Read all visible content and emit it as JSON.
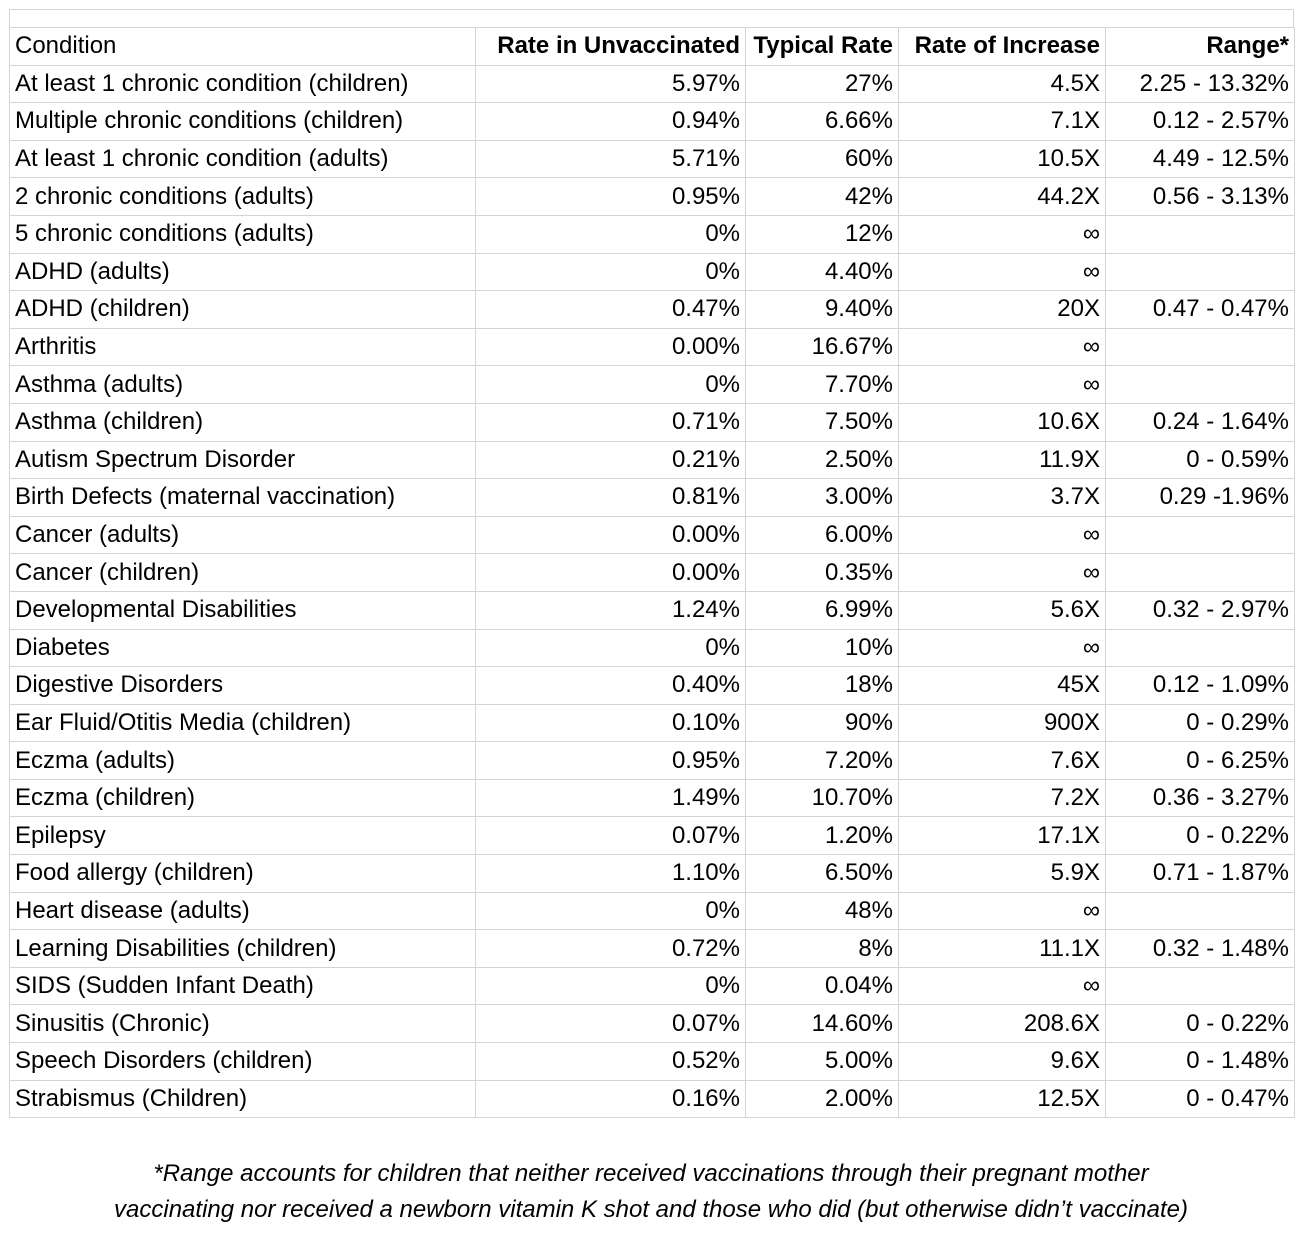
{
  "table": {
    "header": [
      "Condition",
      "Rate in Unvaccinated",
      "Typical Rate",
      "Rate of Increase",
      "Range*"
    ],
    "rows": [
      [
        "At least 1 chronic condition (children)",
        "5.97%",
        "27%",
        "4.5X",
        "2.25 - 13.32%"
      ],
      [
        "Multiple chronic conditions  (children)",
        "0.94%",
        "6.66%",
        "7.1X",
        "0.12 - 2.57%"
      ],
      [
        "At least 1 chronic condition (adults)",
        "5.71%",
        "60%",
        "10.5X",
        "4.49 - 12.5%"
      ],
      [
        "2 chronic conditions (adults)",
        "0.95%",
        "42%",
        "44.2X",
        "0.56 - 3.13%"
      ],
      [
        "5 chronic conditions (adults)",
        "0%",
        "12%",
        "∞",
        null
      ],
      [
        "ADHD (adults)",
        "0%",
        "4.40%",
        "∞",
        null
      ],
      [
        "ADHD (children)",
        "0.47%",
        "9.40%",
        "20X",
        "0.47 - 0.47%"
      ],
      [
        "Arthritis",
        "0.00%",
        "16.67%",
        "∞",
        null
      ],
      [
        "Asthma (adults)",
        "0%",
        "7.70%",
        "∞",
        null
      ],
      [
        "Asthma (children)",
        "0.71%",
        "7.50%",
        "10.6X",
        "0.24 - 1.64%"
      ],
      [
        "Autism Spectrum Disorder",
        "0.21%",
        "2.50%",
        "11.9X",
        "0 - 0.59%"
      ],
      [
        "Birth Defects (maternal vaccination)",
        "0.81%",
        "3.00%",
        "3.7X",
        "0.29 -1.96%"
      ],
      [
        "Cancer (adults)",
        "0.00%",
        "6.00%",
        "∞",
        null
      ],
      [
        "Cancer (children)",
        "0.00%",
        "0.35%",
        "∞",
        null
      ],
      [
        "Developmental Disabilities",
        "1.24%",
        "6.99%",
        "5.6X",
        "0.32 - 2.97%"
      ],
      [
        "Diabetes",
        "0%",
        "10%",
        "∞",
        null
      ],
      [
        "Digestive Disorders",
        "0.40%",
        "18%",
        "45X",
        "0.12 - 1.09%"
      ],
      [
        "Ear Fluid/Otitis Media (children)",
        "0.10%",
        "90%",
        "900X",
        "0 - 0.29%"
      ],
      [
        "Eczma (adults)",
        "0.95%",
        "7.20%",
        "7.6X",
        "0 - 6.25%"
      ],
      [
        "Eczma (children)",
        "1.49%",
        "10.70%",
        "7.2X",
        "0.36 - 3.27%"
      ],
      [
        "Epilepsy",
        "0.07%",
        "1.20%",
        "17.1X",
        "0 - 0.22%"
      ],
      [
        "Food allergy (children)",
        "1.10%",
        "6.50%",
        "5.9X",
        "0.71 - 1.87%"
      ],
      [
        "Heart disease (adults)",
        "0%",
        "48%",
        "∞",
        null
      ],
      [
        "Learning  Disabilities (children)",
        "0.72%",
        "8%",
        "11.1X",
        "0.32 - 1.48%"
      ],
      [
        "SIDS (Sudden Infant Death)",
        "0%",
        "0.04%",
        "∞",
        null
      ],
      [
        "Sinusitis (Chronic)",
        "0.07%",
        "14.60%",
        "208.6X",
        "0 - 0.22%"
      ],
      [
        "Speech Disorders (children)",
        "0.52%",
        "5.00%",
        "9.6X",
        "0 - 1.48%"
      ],
      [
        "Strabismus (Children)",
        "0.16%",
        "2.00%",
        "12.5X",
        "0 - 0.47%"
      ]
    ]
  },
  "footnote": [
    "*Range accounts for children that neither received vaccinations through their pregnant mother",
    "vaccinating nor received a newborn vitamin K shot and those who did (but otherwise didn’t vaccinate)"
  ]
}
